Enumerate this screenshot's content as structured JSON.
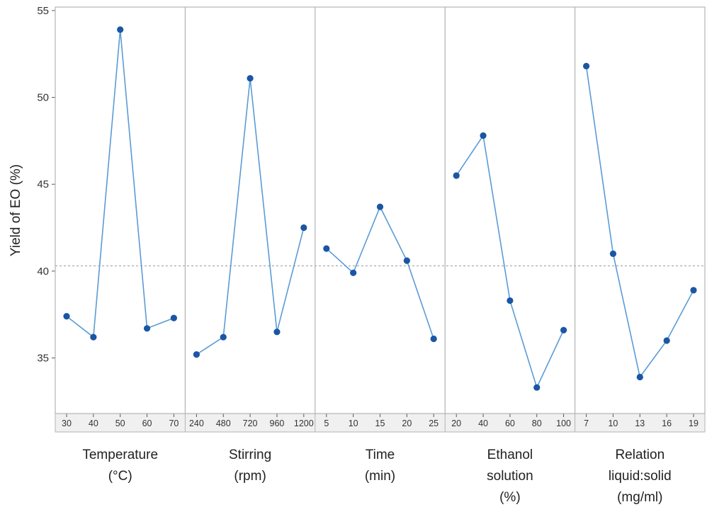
{
  "chart_data": {
    "type": "line",
    "ylabel": "Yield of EO (%)",
    "ylim": [
      31.8,
      55.2
    ],
    "yticks": [
      35,
      40,
      45,
      50,
      55
    ],
    "reference_line": {
      "y": 40.3,
      "style": "dashed"
    },
    "grid": false,
    "colors": {
      "line": "#5b9bd5",
      "marker": "#1a56a4",
      "panel_border": "#b3b3b3",
      "reference": "#9a9a9a",
      "plot_background": "#ffffff",
      "strip_background": "#f0f0f0"
    },
    "panels": [
      {
        "label": [
          "Temperature",
          "(°C)"
        ],
        "x": [
          "30",
          "40",
          "50",
          "60",
          "70"
        ],
        "values": [
          37.4,
          36.2,
          53.9,
          36.7,
          37.3
        ]
      },
      {
        "label": [
          "Stirring",
          "(rpm)"
        ],
        "x": [
          "240",
          "480",
          "720",
          "960",
          "1200"
        ],
        "values": [
          35.2,
          36.2,
          51.1,
          36.5,
          42.5
        ]
      },
      {
        "label": [
          "Time",
          "(min)"
        ],
        "x": [
          "5",
          "10",
          "15",
          "20",
          "25"
        ],
        "values": [
          41.3,
          39.9,
          43.7,
          40.6,
          36.1
        ]
      },
      {
        "label": [
          "Ethanol",
          "solution",
          "(%)"
        ],
        "x": [
          "20",
          "40",
          "60",
          "80",
          "100"
        ],
        "values": [
          45.5,
          47.8,
          38.3,
          33.3,
          36.6
        ]
      },
      {
        "label": [
          "Relation",
          "liquid:solid",
          "(mg/ml)"
        ],
        "x": [
          "7",
          "10",
          "13",
          "16",
          "19"
        ],
        "values": [
          51.8,
          41.0,
          33.9,
          36.0,
          38.9
        ]
      }
    ]
  }
}
